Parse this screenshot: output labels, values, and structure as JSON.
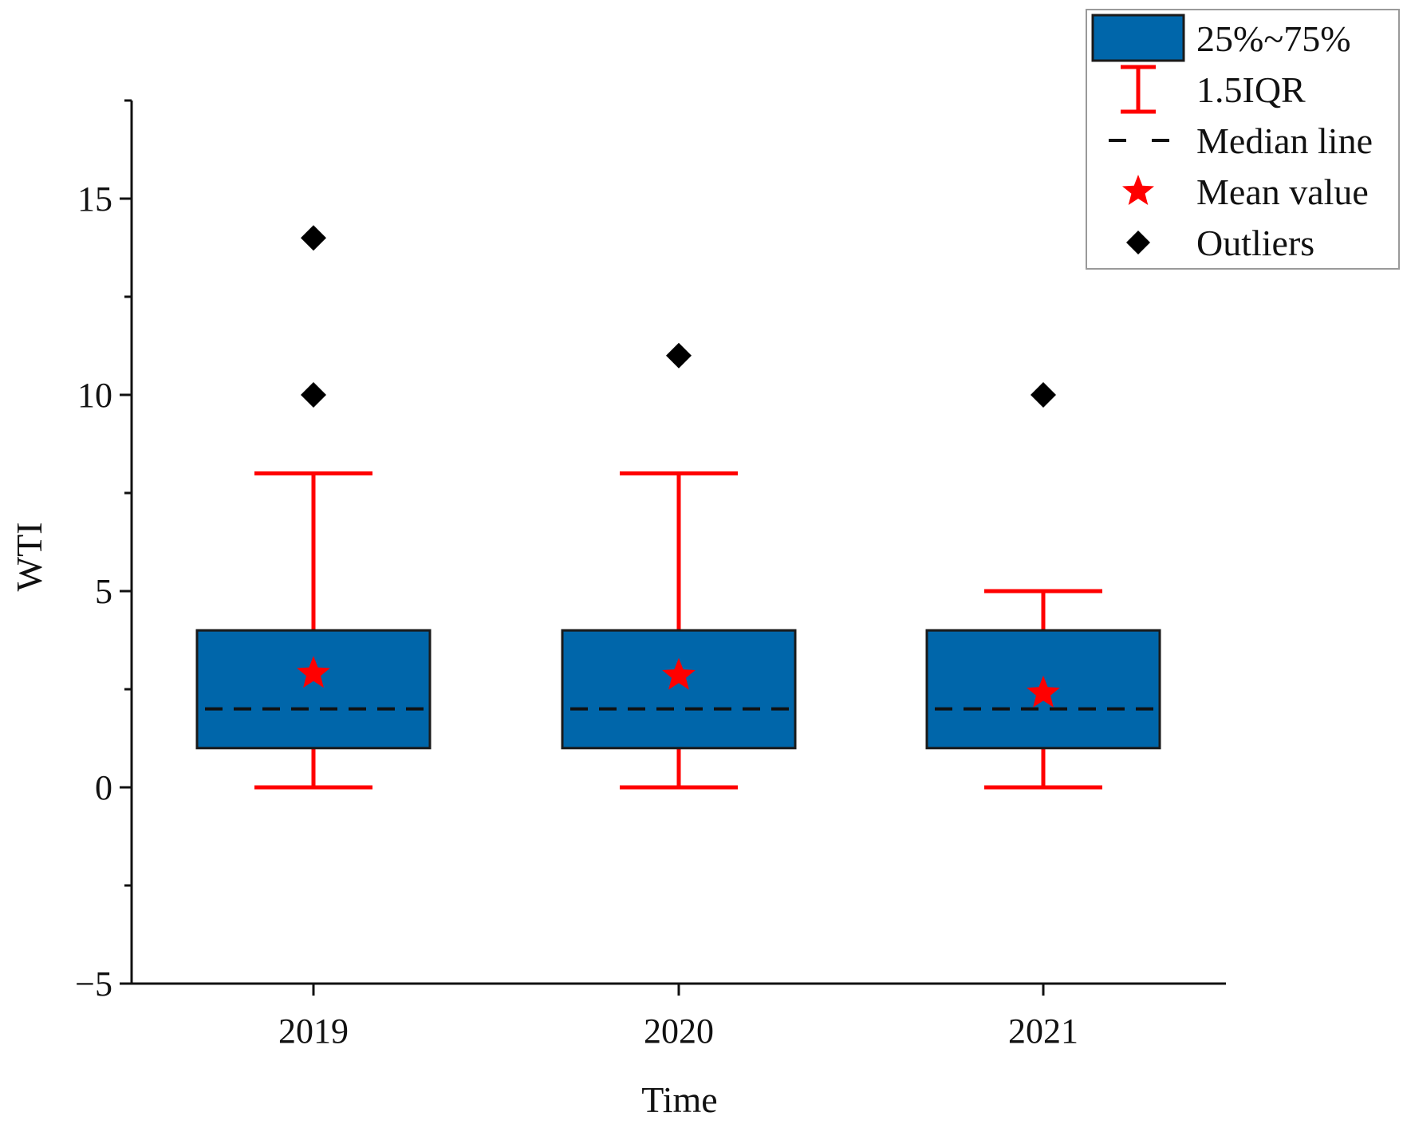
{
  "chart_data": {
    "type": "box",
    "xlabel": "Time",
    "ylabel": "WTI",
    "ylim": [
      -5,
      17.5
    ],
    "yticks": [
      -5,
      0,
      5,
      10,
      15
    ],
    "yminor_step": 2.5,
    "categories": [
      "2019",
      "2020",
      "2021"
    ],
    "boxes": [
      {
        "category": "2019",
        "q1": 1,
        "median": 2,
        "q3": 4,
        "whisker_low": 0,
        "whisker_high": 8,
        "mean": 2.9,
        "outliers": [
          10,
          14
        ]
      },
      {
        "category": "2020",
        "q1": 1,
        "median": 2,
        "q3": 4,
        "whisker_low": 0,
        "whisker_high": 8,
        "mean": 2.85,
        "outliers": [
          11
        ]
      },
      {
        "category": "2021",
        "q1": 1,
        "median": 2,
        "q3": 4,
        "whisker_low": 0,
        "whisker_high": 5,
        "mean": 2.4,
        "outliers": [
          10
        ]
      }
    ],
    "legend": {
      "placement": "top-right",
      "items": [
        {
          "key": "box",
          "label": "25%~75%"
        },
        {
          "key": "whisker",
          "label": "1.5IQR"
        },
        {
          "key": "median",
          "label": "Median line"
        },
        {
          "key": "mean",
          "label": "Mean value"
        },
        {
          "key": "outlier",
          "label": "Outliers"
        }
      ]
    },
    "colors": {
      "box_fill": "#0066AA",
      "box_edge": "#1a1a1a",
      "whisker": "#FF0000",
      "mean": "#FF0000",
      "median": "#111111",
      "outlier": "#000000",
      "axis": "#111111"
    }
  }
}
